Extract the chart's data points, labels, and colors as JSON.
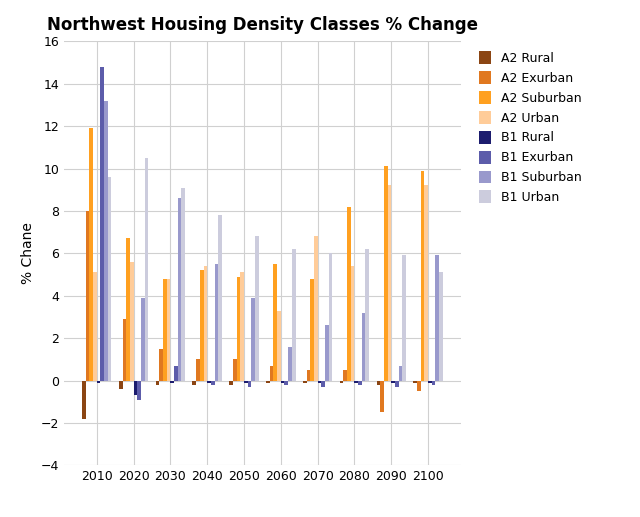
{
  "title": "Northwest Housing Density Classes % Change",
  "ylabel": "% Chane",
  "years": [
    2010,
    2020,
    2030,
    2040,
    2050,
    2060,
    2070,
    2080,
    2090,
    2100
  ],
  "series": {
    "A2 Rural": [
      -1.8,
      -0.4,
      -0.2,
      -0.2,
      -0.2,
      -0.1,
      -0.1,
      -0.1,
      -0.2,
      -0.1
    ],
    "A2 Exurban": [
      8.0,
      2.9,
      1.5,
      1.0,
      1.0,
      0.7,
      0.5,
      0.5,
      -1.5,
      -0.5
    ],
    "A2 Suburban": [
      11.9,
      6.7,
      4.8,
      5.2,
      4.9,
      5.5,
      4.8,
      8.2,
      10.1,
      9.9
    ],
    "A2 Urban": [
      5.1,
      5.6,
      4.8,
      5.4,
      5.1,
      3.3,
      6.8,
      5.4,
      9.2,
      9.2
    ],
    "B1 Rural": [
      -0.1,
      -0.7,
      -0.1,
      -0.1,
      -0.1,
      -0.1,
      -0.1,
      -0.1,
      -0.1,
      -0.1
    ],
    "B1 Exurban": [
      14.8,
      -0.9,
      0.7,
      -0.2,
      -0.3,
      -0.2,
      -0.3,
      -0.2,
      -0.3,
      -0.2
    ],
    "B1 Suburban": [
      13.2,
      3.9,
      8.6,
      5.5,
      3.9,
      1.6,
      2.6,
      3.2,
      0.7,
      5.9
    ],
    "B1 Urban": [
      9.6,
      10.5,
      9.1,
      7.8,
      6.8,
      6.2,
      6.0,
      6.2,
      5.9,
      5.1
    ]
  },
  "colors": {
    "A2 Rural": "#8B4513",
    "A2 Exurban": "#E07820",
    "A2 Suburban": "#FFA020",
    "A2 Urban": "#FFCC99",
    "B1 Rural": "#1C1C6E",
    "B1 Exurban": "#5C5CAA",
    "B1 Suburban": "#9999CC",
    "B1 Urban": "#CCCCDD"
  },
  "ylim": [
    -4,
    16
  ],
  "yticks": [
    -4,
    -2,
    0,
    2,
    4,
    6,
    8,
    10,
    12,
    14,
    16
  ],
  "background_color": "#ffffff",
  "grid_color": "#d0d0d0",
  "figsize": [
    6.4,
    5.17
  ],
  "dpi": 100
}
